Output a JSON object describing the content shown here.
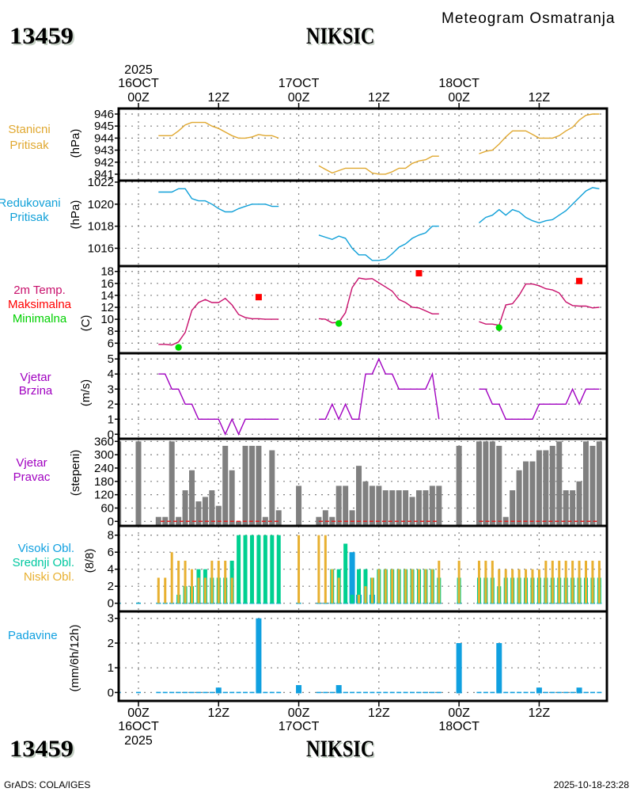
{
  "header": {
    "station_id": "13459",
    "station_name": "NIKSIC",
    "title": "Meteogram Osmatranja"
  },
  "footer": {
    "station_id": "13459",
    "station_name": "NIKSIC",
    "credit": "GrADS: COLA/IGES",
    "timestamp": "2025-10-18-23:28"
  },
  "time_axis": {
    "xlim": [
      -2.96,
      70.14
    ],
    "grid_hours": [
      0,
      12,
      24,
      36,
      48,
      60
    ],
    "ticks": [
      {
        "hour": 0,
        "time": "00Z",
        "date": "16OCT",
        "year": "2025"
      },
      {
        "hour": 12,
        "time": "12Z"
      },
      {
        "hour": 24,
        "time": "00Z",
        "date": "17OCT"
      },
      {
        "hour": 36,
        "time": "12Z"
      },
      {
        "hour": 48,
        "time": "00Z",
        "date": "18OCT"
      },
      {
        "hour": 60,
        "time": "12Z"
      }
    ],
    "observation_hours": [
      -3,
      0,
      3,
      4,
      5,
      6,
      7,
      8,
      9,
      10,
      11,
      12,
      13,
      14,
      15,
      16,
      17,
      18,
      19,
      20,
      21,
      24,
      27,
      28,
      29,
      30,
      31,
      32,
      33,
      34,
      35,
      36,
      37,
      38,
      39,
      40,
      41,
      42,
      43,
      44,
      45,
      48,
      51,
      52,
      53,
      54,
      55,
      56,
      57,
      58,
      59,
      60,
      61,
      62,
      63,
      64,
      65,
      66,
      67,
      68,
      69
    ]
  },
  "chart_data": [
    {
      "id": "station-pressure",
      "type": "line",
      "labels": [
        {
          "text": "Stanicni",
          "color": "#e0a830"
        },
        {
          "text": "Pritisak",
          "color": "#e0a830"
        }
      ],
      "ylabel": "(hPa)",
      "ylim": [
        940.47,
        946.46
      ],
      "yticks": [
        941,
        942,
        943,
        944,
        945,
        946
      ],
      "series": [
        {
          "name": "Stanicni Pritisak",
          "color": "#e0a830",
          "segments": [
            {
              "start_hour": 3,
              "values": [
                944.2,
                944.2,
                944.2,
                944.6,
                945.1,
                945.3,
                945.3,
                945.3,
                945.0,
                944.8,
                944.5,
                944.2,
                944.0,
                944.0,
                944.1,
                944.3,
                944.2,
                944.2,
                944.0
              ]
            },
            {
              "start_hour": 27,
              "values": [
                941.7,
                941.4,
                941.1,
                941.3,
                941.5,
                941.5,
                941.5,
                941.5,
                941.1,
                941.0,
                941.0,
                941.2,
                941.5,
                941.5,
                941.9,
                942.1,
                942.2,
                942.5,
                942.5
              ]
            },
            {
              "start_hour": 51,
              "values": [
                942.7,
                942.9,
                943.0,
                943.5,
                944.1,
                944.6,
                944.6,
                944.6,
                944.3,
                944.0,
                944.0,
                944.0,
                944.2,
                944.6,
                944.9,
                945.5,
                945.9,
                946.0,
                946.0
              ]
            }
          ]
        }
      ]
    },
    {
      "id": "reduced-pressure",
      "type": "line",
      "labels": [
        {
          "text": "Redukovani",
          "color": "#10a0d8"
        },
        {
          "text": "Pritisak",
          "color": "#10a0d8"
        }
      ],
      "ylabel": "(hPa)",
      "ylim": [
        1014.38,
        1022.14
      ],
      "yticks": [
        1016,
        1018,
        1020,
        1022
      ],
      "series": [
        {
          "name": "Redukovani Pritisak",
          "color": "#10a0d8",
          "segments": [
            {
              "start_hour": 3,
              "values": [
                1021.1,
                1021.1,
                1021.1,
                1021.4,
                1021.4,
                1020.5,
                1020.3,
                1020.3,
                1020.0,
                1019.6,
                1019.3,
                1019.3,
                1019.6,
                1019.8,
                1020.0,
                1020.0,
                1020.0,
                1019.8,
                1019.8
              ]
            },
            {
              "start_hour": 27,
              "values": [
                1017.2,
                1017.0,
                1016.8,
                1017.1,
                1016.9,
                1016.0,
                1015.4,
                1015.4,
                1014.9,
                1014.9,
                1015.0,
                1015.5,
                1016.1,
                1016.4,
                1016.9,
                1017.2,
                1017.4,
                1018.0,
                1018.0
              ]
            },
            {
              "start_hour": 51,
              "values": [
                1018.3,
                1018.8,
                1019.0,
                1019.5,
                1019.0,
                1019.5,
                1019.3,
                1018.8,
                1018.5,
                1018.3,
                1018.5,
                1018.6,
                1019.0,
                1019.4,
                1020.0,
                1020.6,
                1021.2,
                1021.5,
                1021.4
              ]
            }
          ]
        }
      ]
    },
    {
      "id": "temperature",
      "type": "line",
      "labels": [
        {
          "text": "2m Temp.",
          "color": "#c8106c"
        },
        {
          "text": "Maksimalna",
          "color": "#ff0000"
        },
        {
          "text": "Minimalna",
          "color": "#00d000"
        }
      ],
      "ylabel": "(C)",
      "ylim": [
        4.32,
        18.89
      ],
      "yticks": [
        6,
        8,
        10,
        12,
        14,
        16,
        18
      ],
      "series": [
        {
          "name": "2m Temp.",
          "color": "#c8106c",
          "segments": [
            {
              "start_hour": 3,
              "values": [
                5.8,
                5.8,
                5.7,
                6.2,
                7.8,
                11.5,
                12.8,
                13.3,
                12.8,
                12.8,
                13.5,
                12.4,
                10.8,
                10.3,
                10.1,
                10.1,
                10.0,
                10.0,
                10.0
              ]
            },
            {
              "start_hour": 27,
              "values": [
                10.1,
                10.0,
                9.4,
                9.5,
                11.1,
                15.3,
                16.9,
                16.7,
                16.8,
                16.1,
                15.4,
                14.7,
                13.3,
                12.8,
                12.0,
                11.9,
                11.4,
                10.9,
                10.9
              ]
            },
            {
              "start_hour": 51,
              "values": [
                9.6,
                9.2,
                9.2,
                9.0,
                12.4,
                12.6,
                14.0,
                15.9,
                15.9,
                15.6,
                15.1,
                14.9,
                14.4,
                12.9,
                12.3,
                12.2,
                12.2,
                11.9,
                12.0
              ]
            }
          ]
        }
      ],
      "max_markers": {
        "name": "Maksimalna",
        "color": "#ff0000",
        "points": [
          {
            "hour": 18,
            "value": 13.7
          },
          {
            "hour": 42,
            "value": 17.7
          },
          {
            "hour": 66,
            "value": 16.4
          }
        ]
      },
      "min_markers": {
        "name": "Minimalna",
        "color": "#00dd00",
        "points": [
          {
            "hour": 6,
            "value": 5.3
          },
          {
            "hour": 30,
            "value": 9.3
          },
          {
            "hour": 54,
            "value": 8.6
          }
        ]
      }
    },
    {
      "id": "wind-speed",
      "type": "line",
      "labels": [
        {
          "text": "Vjetar",
          "color": "#a000c0"
        },
        {
          "text": "Brzina",
          "color": "#a000c0"
        }
      ],
      "ylabel": "(m/s)",
      "ylim": [
        -0.3,
        5.38
      ],
      "yticks": [
        0,
        1,
        2,
        3,
        4,
        5
      ],
      "series": [
        {
          "name": "Vjetar Brzina",
          "color": "#a000c0",
          "segments": [
            {
              "start_hour": 3,
              "values": [
                4,
                4,
                3,
                3,
                2,
                2,
                1,
                1,
                1,
                1,
                0,
                1,
                0,
                1,
                1,
                1,
                1,
                1,
                1
              ]
            },
            {
              "start_hour": 27,
              "values": [
                1,
                1,
                2,
                1,
                2,
                1,
                1,
                4,
                4,
                5,
                4,
                4,
                3,
                3,
                3,
                3,
                3,
                4,
                1
              ]
            },
            {
              "start_hour": 51,
              "values": [
                3,
                3,
                2,
                2,
                1,
                1,
                1,
                1,
                1,
                2,
                2,
                2,
                2,
                2,
                3,
                2,
                3,
                3,
                3
              ]
            }
          ]
        }
      ]
    },
    {
      "id": "wind-direction",
      "type": "bar",
      "labels": [
        {
          "text": "Vjetar",
          "color": "#a000c0"
        },
        {
          "text": "Pravac",
          "color": "#a000c0"
        }
      ],
      "ylabel": "(stepeni)",
      "ylim": [
        -20.3,
        371.8
      ],
      "yticks": [
        0,
        60,
        120,
        180,
        240,
        300,
        360
      ],
      "bar_color": "#808080",
      "values": [
        360,
        360,
        20,
        20,
        360,
        20,
        140,
        230,
        90,
        110,
        140,
        70,
        340,
        230,
        0,
        340,
        340,
        340,
        20,
        320,
        50,
        160,
        20,
        50,
        20,
        160,
        160,
        50,
        250,
        180,
        160,
        160,
        140,
        140,
        140,
        140,
        110,
        140,
        140,
        160,
        160,
        340,
        360,
        360,
        360,
        340,
        20,
        140,
        230,
        270,
        270,
        320,
        320,
        340,
        360,
        140,
        140,
        180,
        360,
        340,
        360
      ],
      "zero_line": {
        "color": "#e02020",
        "segments": [
          [
            3.3,
            21
          ],
          [
            27,
            45
          ],
          [
            51,
            69
          ]
        ]
      }
    },
    {
      "id": "cloud-cover",
      "type": "bar",
      "labels": [
        {
          "text": "Visoki Obl.",
          "color": "#10a0e0"
        },
        {
          "text": "Srednji Obl.",
          "color": "#00c8a0"
        },
        {
          "text": "Niski Obl.",
          "color": "#e8b030"
        }
      ],
      "ylabel": "(8/8)",
      "ylim": [
        -0.96,
        9.09
      ],
      "yticks": [
        0,
        2,
        4,
        6,
        8
      ],
      "zero_color": "#10a8c8",
      "series": [
        {
          "name": "Visoki Obl.",
          "color": "#10a0e0",
          "values": [
            0,
            0,
            0,
            0,
            0,
            0,
            0,
            0,
            0,
            0,
            0,
            0,
            0,
            0,
            0,
            0,
            0,
            0,
            0,
            0,
            0,
            0,
            0,
            0,
            0,
            0,
            0,
            6,
            1,
            0,
            1,
            0,
            0,
            0,
            0,
            0,
            0,
            0,
            0,
            0,
            0,
            0,
            0,
            0,
            0,
            0,
            0,
            0,
            0,
            0,
            0,
            0,
            0,
            0,
            0,
            0,
            0,
            0,
            0,
            0,
            0
          ]
        },
        {
          "name": "Srednji Obl.",
          "color": "#00d090",
          "values": [
            0,
            0,
            0,
            0,
            0,
            1,
            2,
            2,
            4,
            4,
            3,
            3,
            3,
            5,
            8,
            8,
            8,
            8,
            8,
            8,
            8,
            0,
            0,
            0,
            4,
            4,
            7,
            1,
            4,
            4,
            3,
            4,
            4,
            4,
            4,
            4,
            4,
            4,
            4,
            4,
            3,
            3,
            3,
            3,
            3,
            2,
            3,
            3,
            3,
            3,
            3,
            3,
            3,
            3,
            3,
            3,
            3,
            3,
            3,
            3,
            3
          ]
        },
        {
          "name": "Niski Obl.",
          "color": "#e8b030",
          "values": [
            1,
            0,
            3,
            3,
            6,
            5,
            5,
            4,
            3,
            3,
            5,
            5,
            5,
            3,
            0,
            0,
            0,
            0,
            0,
            0,
            0,
            8,
            8,
            8,
            4,
            3,
            0,
            0,
            1,
            2,
            3,
            4,
            4,
            4,
            4,
            4,
            4,
            4,
            4,
            4,
            5,
            5,
            5,
            5,
            5,
            4,
            4,
            4,
            4,
            4,
            4,
            4,
            5,
            5,
            5,
            5,
            5,
            5,
            5,
            5,
            5
          ]
        }
      ]
    },
    {
      "id": "precipitation",
      "type": "bar",
      "labels": [
        {
          "text": "Padavine",
          "color": "#10a0e0"
        }
      ],
      "ylabel": "(mm/6h/12h)",
      "ylim": [
        -0.34,
        3.28
      ],
      "yticks": [
        0,
        1,
        2,
        3
      ],
      "color": "#10a0e0",
      "hours": [
        12,
        18,
        24,
        30,
        48,
        54,
        60,
        66
      ],
      "values": [
        0.2,
        3.0,
        0.3,
        0.3,
        2.0,
        2.0,
        0.2,
        0.2
      ]
    }
  ]
}
